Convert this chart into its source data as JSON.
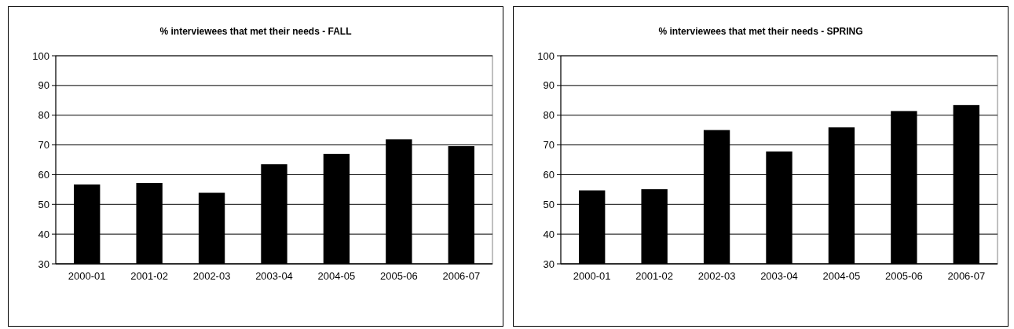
{
  "chart_data": [
    {
      "type": "bar",
      "title": "% interviewees that met their needs - FALL",
      "categories": [
        "2000-01",
        "2001-02",
        "2002-03",
        "2003-04",
        "2004-05",
        "2005-06",
        "2006-07"
      ],
      "values": [
        56.7,
        57.2,
        53.9,
        63.5,
        67.0,
        71.9,
        69.6
      ],
      "color": "#000000",
      "ylim": [
        30,
        100
      ],
      "yticks": [
        30,
        40,
        50,
        60,
        70,
        80,
        90,
        100
      ],
      "grid": "y"
    },
    {
      "type": "bar",
      "title": "% interviewees that met their needs - SPRING",
      "categories": [
        "2000-01",
        "2001-02",
        "2002-03",
        "2003-04",
        "2004-05",
        "2005-06",
        "2006-07"
      ],
      "values": [
        54.7,
        55.1,
        75.0,
        67.8,
        75.9,
        81.4,
        83.4
      ],
      "color": "#000000",
      "ylim": [
        30,
        100
      ],
      "yticks": [
        30,
        40,
        50,
        60,
        70,
        80,
        90,
        100
      ],
      "grid": "y"
    }
  ]
}
